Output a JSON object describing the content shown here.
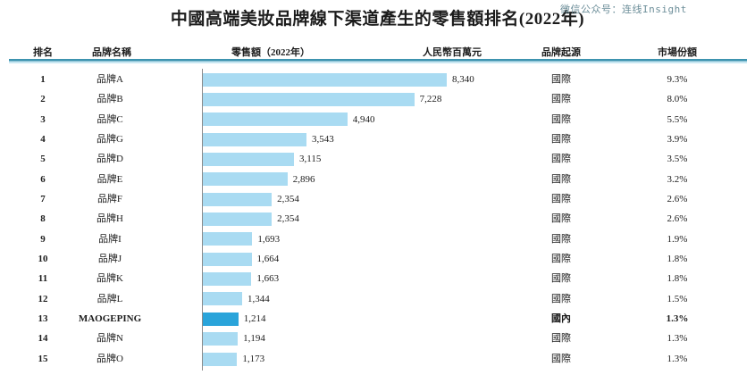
{
  "title": "中國高端美妝品牌線下渠道產生的零售額排名(2022年)",
  "watermark": "微信公众号：连线Insight",
  "headers": {
    "rank": "排名",
    "brand": "品牌名稱",
    "sales": "零售額（2022年）",
    "unit": "人民幣百萬元",
    "origin": "品牌起源",
    "share": "市場份額"
  },
  "colors": {
    "bar_normal": "#a9dbf2",
    "bar_highlight": "#2aa4da",
    "rule_dark": "#3d93af",
    "rule_light": "#c9e7f2",
    "axis_line": "#8a8a8a",
    "watermark_text": "#6c8e99"
  },
  "chart_data": {
    "type": "bar",
    "orientation": "horizontal",
    "title": "中國高端美妝品牌線下渠道產生的零售額排名(2022年)",
    "value_unit": "人民幣百萬元",
    "xlim": [
      0,
      8340
    ],
    "grid": false,
    "legend": "none",
    "rows": [
      {
        "rank": "1",
        "brand": "品牌A",
        "value": 8340,
        "value_label": "8,340",
        "origin": "國際",
        "share": "9.3%",
        "highlight": false
      },
      {
        "rank": "2",
        "brand": "品牌B",
        "value": 7228,
        "value_label": "7,228",
        "origin": "國際",
        "share": "8.0%",
        "highlight": false
      },
      {
        "rank": "3",
        "brand": "品牌C",
        "value": 4940,
        "value_label": "4,940",
        "origin": "國際",
        "share": "5.5%",
        "highlight": false
      },
      {
        "rank": "4",
        "brand": "品牌G",
        "value": 3543,
        "value_label": "3,543",
        "origin": "國際",
        "share": "3.9%",
        "highlight": false
      },
      {
        "rank": "5",
        "brand": "品牌D",
        "value": 3115,
        "value_label": "3,115",
        "origin": "國際",
        "share": "3.5%",
        "highlight": false
      },
      {
        "rank": "6",
        "brand": "品牌E",
        "value": 2896,
        "value_label": "2,896",
        "origin": "國際",
        "share": "3.2%",
        "highlight": false
      },
      {
        "rank": "7",
        "brand": "品牌F",
        "value": 2354,
        "value_label": "2,354",
        "origin": "國際",
        "share": "2.6%",
        "highlight": false
      },
      {
        "rank": "8",
        "brand": "品牌H",
        "value": 2354,
        "value_label": "2,354",
        "origin": "國際",
        "share": "2.6%",
        "highlight": false
      },
      {
        "rank": "9",
        "brand": "品牌I",
        "value": 1693,
        "value_label": "1,693",
        "origin": "國際",
        "share": "1.9%",
        "highlight": false
      },
      {
        "rank": "10",
        "brand": "品牌J",
        "value": 1664,
        "value_label": "1,664",
        "origin": "國際",
        "share": "1.8%",
        "highlight": false
      },
      {
        "rank": "11",
        "brand": "品牌K",
        "value": 1663,
        "value_label": "1,663",
        "origin": "國際",
        "share": "1.8%",
        "highlight": false
      },
      {
        "rank": "12",
        "brand": "品牌L",
        "value": 1344,
        "value_label": "1,344",
        "origin": "國際",
        "share": "1.5%",
        "highlight": false
      },
      {
        "rank": "13",
        "brand": "MAOGEPING",
        "value": 1214,
        "value_label": "1,214",
        "origin": "國內",
        "share": "1.3%",
        "highlight": true
      },
      {
        "rank": "14",
        "brand": "品牌N",
        "value": 1194,
        "value_label": "1,194",
        "origin": "國際",
        "share": "1.3%",
        "highlight": false
      },
      {
        "rank": "15",
        "brand": "品牌O",
        "value": 1173,
        "value_label": "1,173",
        "origin": "國際",
        "share": "1.3%",
        "highlight": false
      }
    ]
  }
}
